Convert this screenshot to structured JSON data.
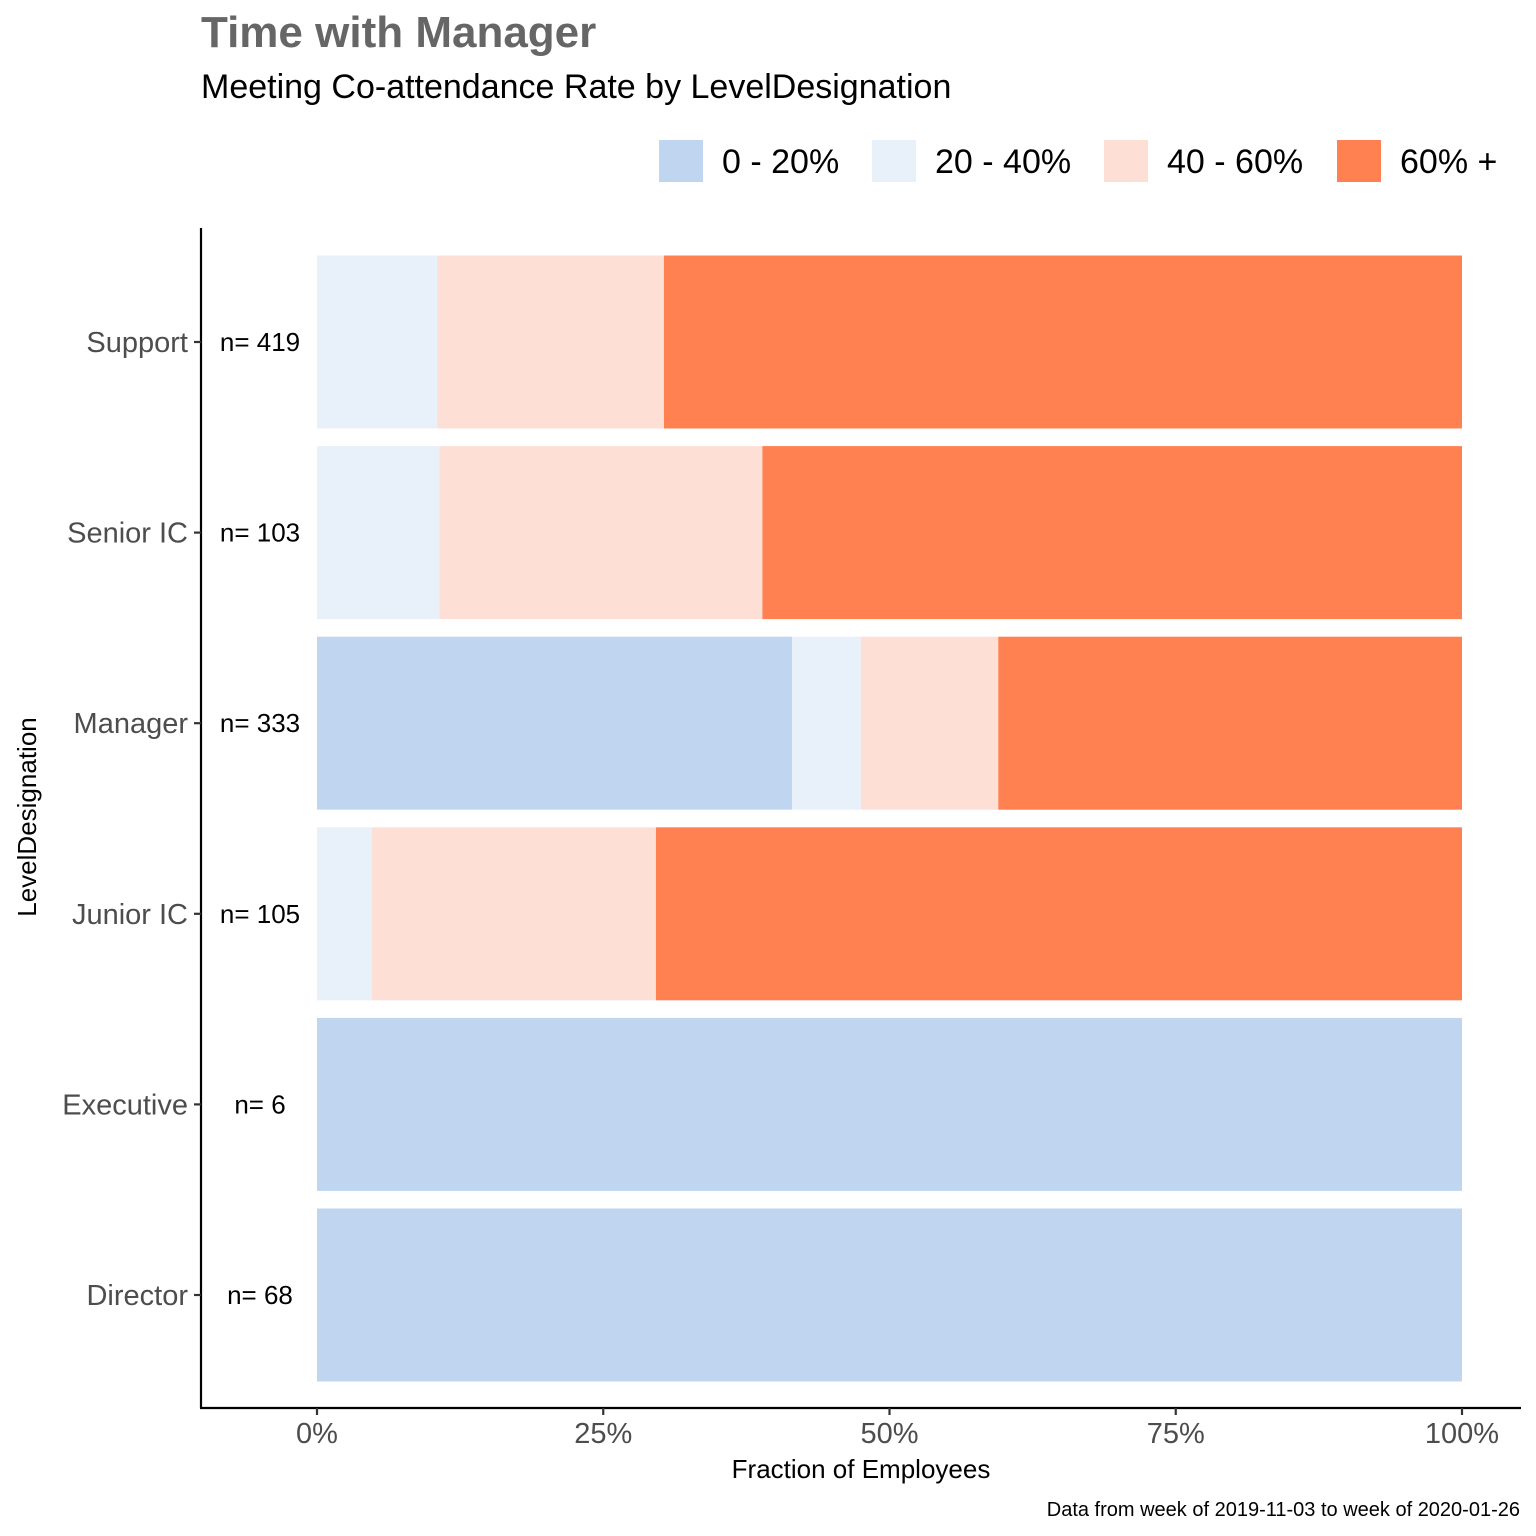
{
  "chart_data": {
    "type": "bar",
    "orientation": "horizontal",
    "stacked": true,
    "title": "Time with Manager",
    "subtitle": "Meeting Co-attendance Rate by LevelDesignation",
    "xlabel": "Fraction of Employees",
    "ylabel": "LevelDesignation",
    "caption": "Data from week of 2019-11-03 to week of 2020-01-26",
    "xlim": [
      0,
      1
    ],
    "x_ticks": [
      "0%",
      "25%",
      "50%",
      "75%",
      "100%"
    ],
    "x_tick_values": [
      0,
      0.25,
      0.5,
      0.75,
      1.0
    ],
    "legend_position": "top-right",
    "grid": false,
    "categories": [
      "Support",
      "Senior IC",
      "Manager",
      "Junior IC",
      "Executive",
      "Director"
    ],
    "n_labels": [
      "n= 419",
      "n= 103",
      "n= 333",
      "n= 105",
      "n= 6",
      "n= 68"
    ],
    "series": [
      {
        "name": "0 - 20%",
        "color": "#C0D5F0",
        "values": [
          0.0,
          0.0,
          0.415,
          0.0,
          1.0,
          1.0
        ]
      },
      {
        "name": "20 - 40%",
        "color": "#E8F0FA",
        "values": [
          0.105,
          0.107,
          0.06,
          0.048,
          0.0,
          0.0
        ]
      },
      {
        "name": "40 - 60%",
        "color": "#FDDFD5",
        "values": [
          0.198,
          0.282,
          0.12,
          0.248,
          0.0,
          0.0
        ]
      },
      {
        "name": "60% +",
        "color": "#FF8051",
        "values": [
          0.697,
          0.611,
          0.405,
          0.704,
          0.0,
          0.0
        ]
      }
    ]
  }
}
